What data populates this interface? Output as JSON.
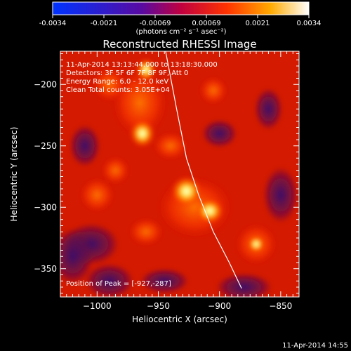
{
  "colorbar": {
    "ticks": [
      "-0.0034",
      "-0.0021",
      "-0.00069",
      "0.00069",
      "0.0021",
      "0.0034"
    ],
    "unit_label": "(photons cm⁻² s⁻¹ asec⁻²)"
  },
  "chart_data": {
    "type": "heatmap",
    "title": "Reconstructed RHESSI Image",
    "xlabel": "Heliocentric X (arcsec)",
    "ylabel": "Heliocentric Y (arcsec)",
    "xlim": [
      -1030,
      -835
    ],
    "ylim": [
      -373,
      -173
    ],
    "xticks": [
      -1000,
      -950,
      -900,
      -850
    ],
    "yticks": [
      -200,
      -250,
      -300,
      -350
    ],
    "xtick_labels": [
      "−1000",
      "−950",
      "−900",
      "−850"
    ],
    "ytick_labels": [
      "−200",
      "−250",
      "−300",
      "−350"
    ],
    "colormap": "red-temperature",
    "value_range": [
      -0.0034,
      0.0034
    ],
    "bright_sources": [
      {
        "x": -927,
        "y": -287
      },
      {
        "x": -908,
        "y": -303
      },
      {
        "x": -963,
        "y": -240
      },
      {
        "x": -960,
        "y": -188
      },
      {
        "x": -870,
        "y": -330
      }
    ],
    "limb_curve": [
      [
        -944,
        -173
      ],
      [
        -935,
        -220
      ],
      [
        -927,
        -260
      ],
      [
        -917,
        -290
      ],
      [
        -905,
        -320
      ],
      [
        -892,
        -345
      ],
      [
        -882,
        -366
      ]
    ],
    "annotations": [
      "11-Apr-2014 13:13:44.000 to 13:18:30.000",
      "Detectors: 3F 5F 6F 7F 8F 9F, Att 0",
      "Energy Range: 6.0 - 12.0 keV",
      "Clean     Total counts: 3.05E+04",
      "Position of Peak = [-927,-287]"
    ],
    "timestamp": "11-Apr-2014 14:55"
  }
}
